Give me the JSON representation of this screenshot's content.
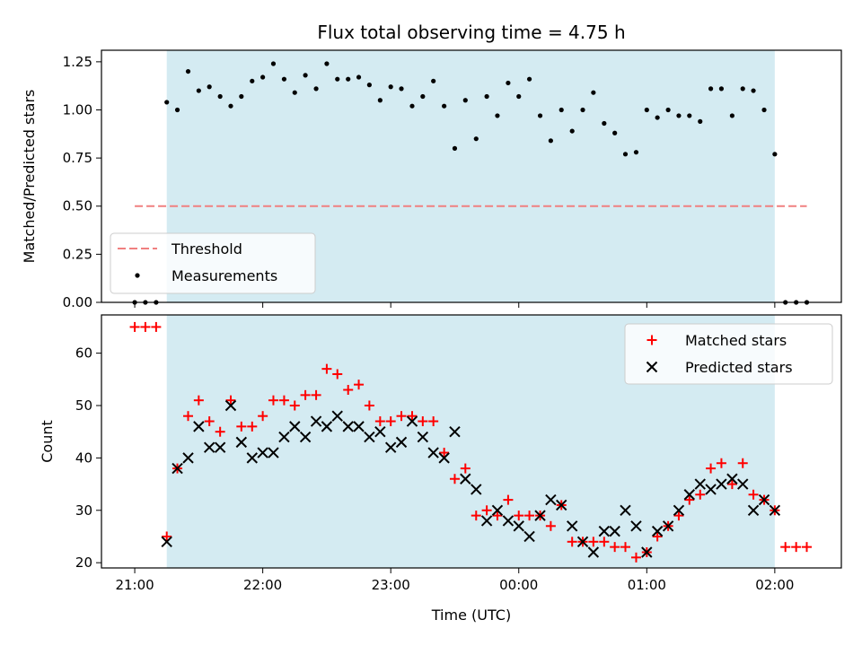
{
  "chart_data": {
    "title": "Flux total observing time = 4.75 h",
    "xlabel": "Time (UTC)",
    "x_ticks": [
      "21:00",
      "22:00",
      "23:00",
      "00:00",
      "01:00",
      "02:00"
    ],
    "x_tick_hours": [
      0,
      1,
      2,
      3,
      4,
      5
    ],
    "x_origin": "21:00",
    "xlim_hours": [
      -0.26,
      5.52
    ],
    "shade_hours": [
      0.25,
      5.0
    ],
    "colors": {
      "shade": "#add8e6",
      "threshold": "#f08080",
      "matched": "#ff0000",
      "predicted": "#000000",
      "measurement": "#000000"
    },
    "panels": [
      {
        "type": "scatter",
        "ylabel": "Matched/Predicted stars",
        "ylim": [
          0,
          1.31
        ],
        "yticks": [
          0.0,
          0.25,
          0.5,
          0.75,
          1.0,
          1.25
        ],
        "ytick_labels": [
          "0.00",
          "0.25",
          "0.50",
          "0.75",
          "1.00",
          "1.25"
        ],
        "legend_position": "lower-left",
        "threshold": {
          "name": "Threshold",
          "value": 0.5,
          "x": [
            0.0,
            5.25
          ]
        },
        "measurements": {
          "name": "Measurements",
          "x": [
            0.0,
            0.083,
            0.167,
            0.25,
            0.333,
            0.417,
            0.5,
            0.583,
            0.667,
            0.75,
            0.833,
            0.917,
            1.0,
            1.083,
            1.167,
            1.25,
            1.333,
            1.417,
            1.5,
            1.583,
            1.667,
            1.75,
            1.833,
            1.917,
            2.0,
            2.083,
            2.167,
            2.25,
            2.333,
            2.417,
            2.5,
            2.583,
            2.667,
            2.75,
            2.833,
            2.917,
            3.0,
            3.083,
            3.167,
            3.25,
            3.333,
            3.417,
            3.5,
            3.583,
            3.667,
            3.75,
            3.833,
            3.917,
            4.0,
            4.083,
            4.167,
            4.25,
            4.333,
            4.417,
            4.5,
            4.583,
            4.667,
            4.75,
            4.833,
            4.917,
            5.0,
            5.083,
            5.167,
            5.25
          ],
          "y": [
            0,
            0,
            0,
            1.04,
            1.0,
            1.2,
            1.1,
            1.12,
            1.07,
            1.02,
            1.07,
            1.15,
            1.17,
            1.24,
            1.16,
            1.09,
            1.18,
            1.11,
            1.24,
            1.16,
            1.16,
            1.17,
            1.13,
            1.05,
            1.12,
            1.11,
            1.02,
            1.07,
            1.15,
            1.02,
            0.8,
            1.05,
            0.85,
            1.07,
            0.97,
            1.14,
            1.07,
            1.16,
            0.97,
            0.84,
            1.0,
            0.89,
            1.0,
            1.09,
            0.93,
            0.88,
            0.77,
            0.78,
            1.0,
            0.96,
            1.0,
            0.97,
            0.97,
            0.94,
            1.11,
            1.11,
            0.97,
            1.11,
            1.1,
            1.0,
            0.77,
            0,
            0,
            0
          ]
        }
      },
      {
        "type": "scatter",
        "ylabel": "Count",
        "ylim": [
          19,
          67.3
        ],
        "yticks": [
          20,
          30,
          40,
          50,
          60
        ],
        "ytick_labels": [
          "20",
          "30",
          "40",
          "50",
          "60"
        ],
        "legend_position": "top-right",
        "series": [
          {
            "name": "Matched stars",
            "marker": "plus",
            "x": [
              0.0,
              0.083,
              0.167,
              0.25,
              0.333,
              0.417,
              0.5,
              0.583,
              0.667,
              0.75,
              0.833,
              0.917,
              1.0,
              1.083,
              1.167,
              1.25,
              1.333,
              1.417,
              1.5,
              1.583,
              1.667,
              1.75,
              1.833,
              1.917,
              2.0,
              2.083,
              2.167,
              2.25,
              2.333,
              2.417,
              2.5,
              2.583,
              2.667,
              2.75,
              2.833,
              2.917,
              3.0,
              3.083,
              3.167,
              3.25,
              3.333,
              3.417,
              3.5,
              3.583,
              3.667,
              3.75,
              3.833,
              3.917,
              4.0,
              4.083,
              4.167,
              4.25,
              4.333,
              4.417,
              4.5,
              4.583,
              4.667,
              4.75,
              4.833,
              4.917,
              5.0,
              5.083,
              5.167,
              5.25
            ],
            "y": [
              65,
              65,
              65,
              25,
              38,
              48,
              51,
              47,
              45,
              51,
              46,
              46,
              48,
              51,
              51,
              50,
              52,
              52,
              57,
              56,
              53,
              54,
              50,
              47,
              47,
              48,
              48,
              47,
              47,
              41,
              36,
              38,
              29,
              30,
              29,
              32,
              29,
              29,
              29,
              27,
              31,
              24,
              24,
              24,
              24,
              23,
              23,
              21,
              22,
              25,
              27,
              29,
              32,
              33,
              38,
              39,
              35,
              39,
              33,
              32,
              30,
              23,
              23,
              23
            ]
          },
          {
            "name": "Predicted stars",
            "marker": "x",
            "x": [
              0.25,
              0.333,
              0.417,
              0.5,
              0.583,
              0.667,
              0.75,
              0.833,
              0.917,
              1.0,
              1.083,
              1.167,
              1.25,
              1.333,
              1.417,
              1.5,
              1.583,
              1.667,
              1.75,
              1.833,
              1.917,
              2.0,
              2.083,
              2.167,
              2.25,
              2.333,
              2.417,
              2.5,
              2.583,
              2.667,
              2.75,
              2.833,
              2.917,
              3.0,
              3.083,
              3.167,
              3.25,
              3.333,
              3.417,
              3.5,
              3.583,
              3.667,
              3.75,
              3.833,
              3.917,
              4.0,
              4.083,
              4.167,
              4.25,
              4.333,
              4.417,
              4.5,
              4.583,
              4.667,
              4.75,
              4.833,
              4.917,
              5.0
            ],
            "y": [
              24,
              38,
              40,
              46,
              42,
              42,
              50,
              43,
              40,
              41,
              41,
              44,
              46,
              44,
              47,
              46,
              48,
              46,
              46,
              44,
              45,
              42,
              43,
              47,
              44,
              41,
              40,
              45,
              36,
              34,
              28,
              30,
              28,
              27,
              25,
              29,
              32,
              31,
              27,
              24,
              22,
              26,
              26,
              30,
              27,
              22,
              26,
              27,
              30,
              33,
              35,
              34,
              35,
              36,
              35,
              30,
              32,
              30
            ]
          }
        ]
      }
    ]
  }
}
